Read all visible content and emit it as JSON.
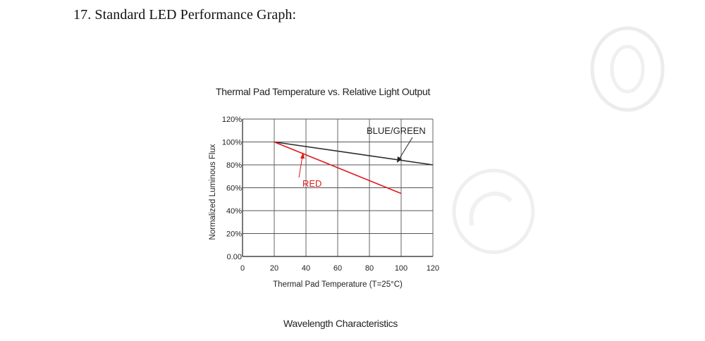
{
  "page": {
    "section_title": "17. Standard LED Performance Graph:",
    "footer_title": "Wavelength Characteristics"
  },
  "chart_data": {
    "type": "line",
    "title": "Thermal Pad Temperature vs. Relative Light Output",
    "xlabel": "Thermal Pad Temperature (T=25°C)",
    "ylabel": "Normalized Luminous Flux",
    "xlim": [
      0,
      120
    ],
    "ylim": [
      0,
      120
    ],
    "x_ticks": [
      0,
      20,
      40,
      60,
      80,
      100,
      120
    ],
    "x_tick_labels": [
      "0",
      "20",
      "40",
      "60",
      "80",
      "100",
      "120"
    ],
    "y_ticks": [
      0,
      20,
      40,
      60,
      80,
      100,
      120
    ],
    "y_tick_labels": [
      "0.00",
      "20%",
      "40%",
      "60%",
      "80%",
      "100%",
      "120%"
    ],
    "grid": true,
    "series": [
      {
        "name": "BLUE/GREEN",
        "color": "#2b2b2b",
        "x": [
          20,
          120
        ],
        "y": [
          100,
          80
        ]
      },
      {
        "name": "RED",
        "color": "#e0191b",
        "x": [
          20,
          100
        ],
        "y": [
          100,
          55
        ]
      }
    ]
  }
}
